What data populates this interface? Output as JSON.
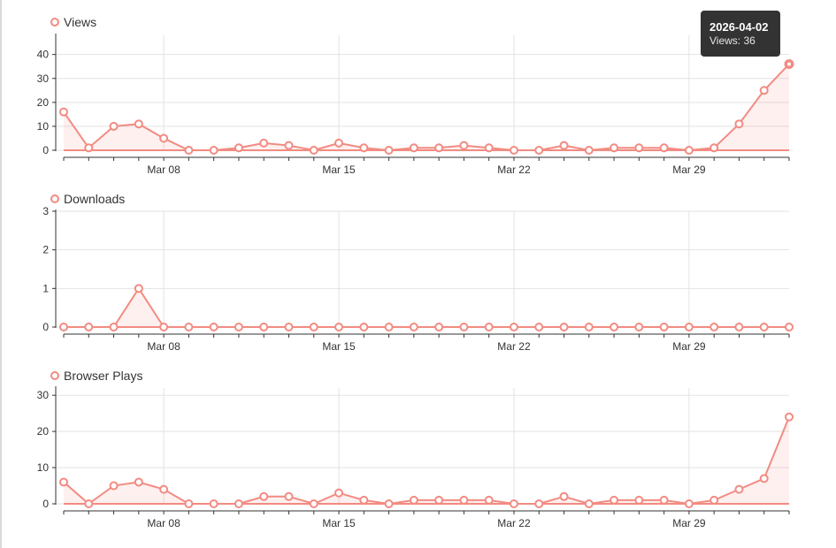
{
  "series_color": "#f28b82",
  "tooltip": {
    "date": "2026-04-02",
    "label": "Views: 36"
  },
  "chart_data": [
    {
      "type": "area",
      "legend": "Views",
      "xticks": [
        "Mar 08",
        "Mar 15",
        "Mar 22",
        "Mar 29"
      ],
      "yticks": [
        0,
        10,
        20,
        30,
        40
      ],
      "ylim": [
        0,
        48
      ],
      "x": [
        "2026-03-04",
        "2026-03-05",
        "2026-03-06",
        "2026-03-07",
        "2026-03-08",
        "2026-03-09",
        "2026-03-10",
        "2026-03-11",
        "2026-03-12",
        "2026-03-13",
        "2026-03-14",
        "2026-03-15",
        "2026-03-16",
        "2026-03-17",
        "2026-03-18",
        "2026-03-19",
        "2026-03-20",
        "2026-03-21",
        "2026-03-22",
        "2026-03-23",
        "2026-03-24",
        "2026-03-25",
        "2026-03-26",
        "2026-03-27",
        "2026-03-28",
        "2026-03-29",
        "2026-03-30",
        "2026-03-31",
        "2026-04-01",
        "2026-04-02"
      ],
      "values": [
        16,
        1,
        10,
        11,
        5,
        0,
        0,
        1,
        3,
        2,
        0,
        3,
        1,
        0,
        1,
        1,
        2,
        1,
        0,
        0,
        2,
        0,
        1,
        1,
        1,
        0,
        1,
        11,
        25,
        36
      ],
      "grid": true
    },
    {
      "type": "area",
      "legend": "Downloads",
      "xticks": [
        "Mar 08",
        "Mar 15",
        "Mar 22",
        "Mar 29"
      ],
      "yticks": [
        0,
        1,
        2,
        3
      ],
      "ylim": [
        0,
        3
      ],
      "x": [
        "2026-03-04",
        "2026-03-05",
        "2026-03-06",
        "2026-03-07",
        "2026-03-08",
        "2026-03-09",
        "2026-03-10",
        "2026-03-11",
        "2026-03-12",
        "2026-03-13",
        "2026-03-14",
        "2026-03-15",
        "2026-03-16",
        "2026-03-17",
        "2026-03-18",
        "2026-03-19",
        "2026-03-20",
        "2026-03-21",
        "2026-03-22",
        "2026-03-23",
        "2026-03-24",
        "2026-03-25",
        "2026-03-26",
        "2026-03-27",
        "2026-03-28",
        "2026-03-29",
        "2026-03-30",
        "2026-03-31",
        "2026-04-01",
        "2026-04-02"
      ],
      "values": [
        0,
        0,
        0,
        1,
        0,
        0,
        0,
        0,
        0,
        0,
        0,
        0,
        0,
        0,
        0,
        0,
        0,
        0,
        0,
        0,
        0,
        0,
        0,
        0,
        0,
        0,
        0,
        0,
        0,
        0
      ],
      "grid": true
    },
    {
      "type": "area",
      "legend": "Browser Plays",
      "xticks": [
        "Mar 08",
        "Mar 15",
        "Mar 22",
        "Mar 29"
      ],
      "yticks": [
        0,
        10,
        20,
        30
      ],
      "ylim": [
        0,
        32
      ],
      "x": [
        "2026-03-04",
        "2026-03-05",
        "2026-03-06",
        "2026-03-07",
        "2026-03-08",
        "2026-03-09",
        "2026-03-10",
        "2026-03-11",
        "2026-03-12",
        "2026-03-13",
        "2026-03-14",
        "2026-03-15",
        "2026-03-16",
        "2026-03-17",
        "2026-03-18",
        "2026-03-19",
        "2026-03-20",
        "2026-03-21",
        "2026-03-22",
        "2026-03-23",
        "2026-03-24",
        "2026-03-25",
        "2026-03-26",
        "2026-03-27",
        "2026-03-28",
        "2026-03-29",
        "2026-03-30",
        "2026-03-31",
        "2026-04-01",
        "2026-04-02"
      ],
      "values": [
        6,
        0,
        5,
        6,
        4,
        0,
        0,
        0,
        2,
        2,
        0,
        3,
        1,
        0,
        1,
        1,
        1,
        1,
        0,
        0,
        2,
        0,
        1,
        1,
        1,
        0,
        1,
        4,
        7,
        24
      ],
      "grid": true
    }
  ]
}
